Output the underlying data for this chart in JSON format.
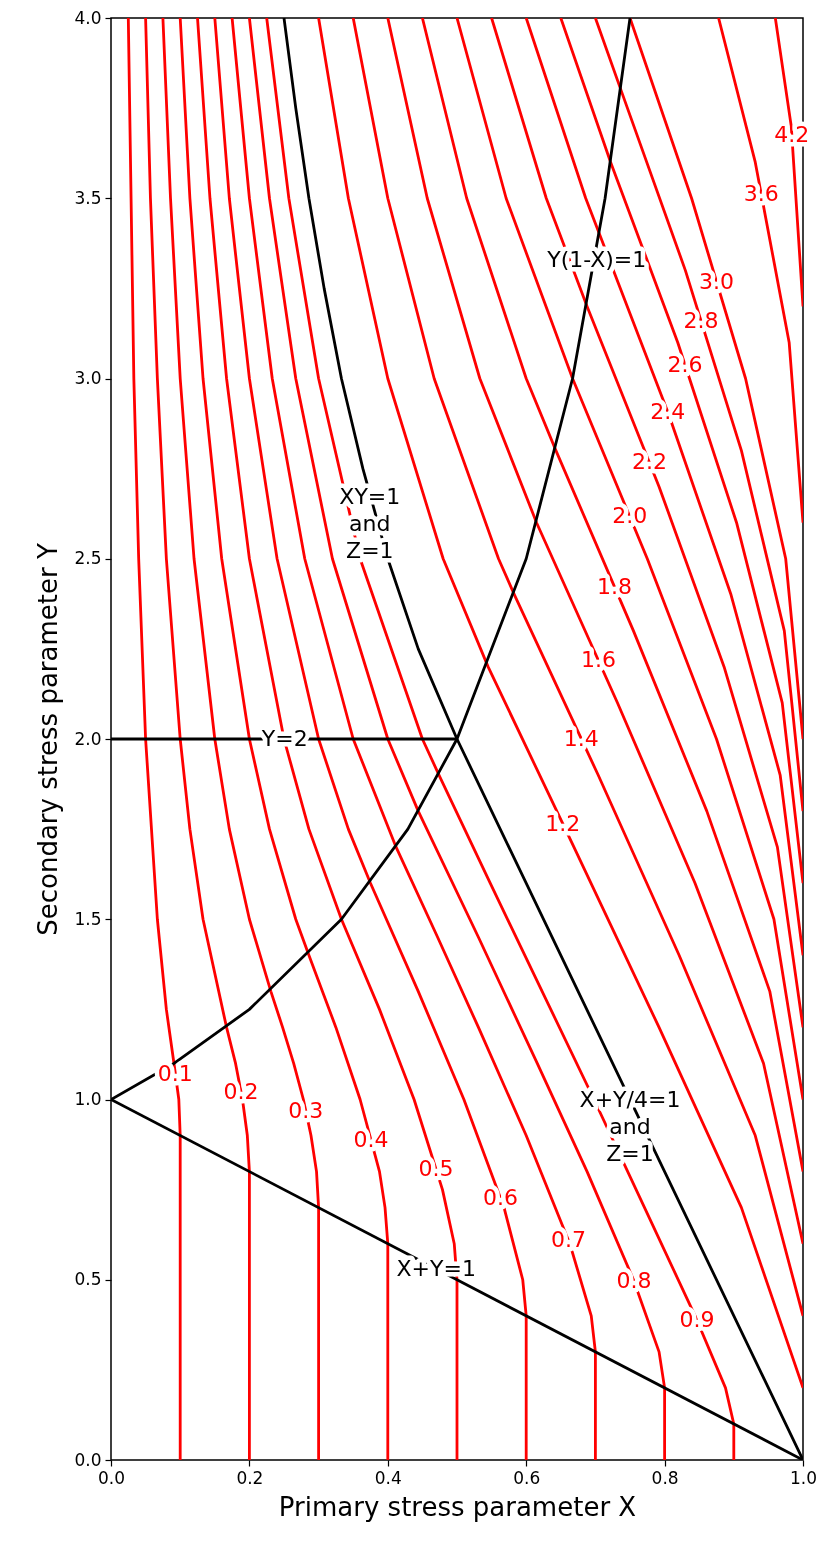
{
  "chart_data": {
    "type": "line",
    "xlabel": "Primary stress parameter X",
    "ylabel": "Secondary stress parameter Y",
    "xlim": [
      0,
      1
    ],
    "ylim": [
      0,
      4
    ],
    "xticks": [
      {
        "value": 0,
        "label": "0.0"
      },
      {
        "value": 0.2,
        "label": "0.2"
      },
      {
        "value": 0.4,
        "label": "0.4"
      },
      {
        "value": 0.6,
        "label": "0.6"
      },
      {
        "value": 0.8,
        "label": "0.8"
      },
      {
        "value": 1,
        "label": "1.0"
      }
    ],
    "yticks": [
      {
        "value": 0,
        "label": "0.0"
      },
      {
        "value": 0.5,
        "label": "0.5"
      },
      {
        "value": 1,
        "label": "1.0"
      },
      {
        "value": 1.5,
        "label": "1.5"
      },
      {
        "value": 2,
        "label": "2.0"
      },
      {
        "value": 2.5,
        "label": "2.5"
      },
      {
        "value": 3,
        "label": "3.0"
      },
      {
        "value": 3.5,
        "label": "3.5"
      },
      {
        "value": 4,
        "label": "4.0"
      }
    ],
    "series": [
      {
        "name": "0.1",
        "color": "#ff0000",
        "x": [
          0.1,
          0.1,
          0.098,
          0.091,
          0.08,
          0.067,
          0.05,
          0.04,
          0.033,
          0.029,
          0.025
        ],
        "values": [
          0,
          0.9,
          1.0,
          1.1,
          1.25,
          1.5,
          2,
          2.5,
          3,
          3.5,
          4
        ]
      },
      {
        "name": "0.2",
        "color": "#ff0000",
        "x": [
          0.2,
          0.2,
          0.197,
          0.19,
          0.18,
          0.167,
          0.133,
          0.114,
          0.1,
          0.08,
          0.067,
          0.057,
          0.05
        ],
        "values": [
          0,
          0.8,
          0.9,
          1.0,
          1.1,
          1.2,
          1.5,
          1.75,
          2,
          2.5,
          3,
          3.5,
          4
        ]
      },
      {
        "name": "0.3",
        "color": "#ff0000",
        "x": [
          0.3,
          0.3,
          0.297,
          0.289,
          0.278,
          0.264,
          0.248,
          0.231,
          0.2,
          0.171,
          0.15,
          0.12,
          0.1,
          0.086,
          0.075
        ],
        "values": [
          0,
          0.7,
          0.8,
          0.9,
          1.0,
          1.1,
          1.2,
          1.3,
          1.5,
          1.75,
          2,
          2.5,
          3,
          3.5,
          4
        ]
      },
      {
        "name": "0.4",
        "color": "#ff0000",
        "x": [
          0.4,
          0.4,
          0.396,
          0.388,
          0.36,
          0.325,
          0.286,
          0.267,
          0.229,
          0.2,
          0.16,
          0.133,
          0.114,
          0.1
        ],
        "values": [
          0,
          0.6,
          0.7,
          0.8,
          1.0,
          1.2,
          1.4,
          1.5,
          1.75,
          2,
          2.5,
          3,
          3.5,
          4
        ]
      },
      {
        "name": "0.5",
        "color": "#ff0000",
        "x": [
          0.5,
          0.5,
          0.496,
          0.479,
          0.438,
          0.388,
          0.333,
          0.286,
          0.25,
          0.2,
          0.167,
          0.143,
          0.125
        ],
        "values": [
          0,
          0.5,
          0.6,
          0.75,
          1.0,
          1.25,
          1.5,
          1.75,
          2,
          2.5,
          3,
          3.5,
          4
        ]
      },
      {
        "name": "0.6",
        "color": "#ff0000",
        "x": [
          0.6,
          0.6,
          0.595,
          0.568,
          0.51,
          0.444,
          0.375,
          0.343,
          0.3,
          0.24,
          0.2,
          0.171,
          0.15
        ],
        "values": [
          0,
          0.4,
          0.5,
          0.7,
          1.0,
          1.3,
          1.6,
          1.75,
          2,
          2.5,
          3,
          3.5,
          4
        ]
      },
      {
        "name": "0.7",
        "color": "#ff0000",
        "x": [
          0.7,
          0.7,
          0.694,
          0.663,
          0.6,
          0.531,
          0.472,
          0.412,
          0.35,
          0.28,
          0.233,
          0.2,
          0.175
        ],
        "values": [
          0,
          0.3,
          0.4,
          0.6,
          0.9,
          1.2,
          1.45,
          1.7,
          2,
          2.5,
          3,
          3.5,
          4
        ]
      },
      {
        "name": "0.8",
        "color": "#ff0000",
        "x": [
          0.8,
          0.8,
          0.792,
          0.755,
          0.688,
          0.616,
          0.531,
          0.444,
          0.4,
          0.32,
          0.267,
          0.229,
          0.2
        ],
        "values": [
          0,
          0.2,
          0.3,
          0.5,
          0.8,
          1.1,
          1.45,
          1.8,
          2,
          2.5,
          3,
          3.5,
          4
        ]
      },
      {
        "name": "0.9",
        "color": "#ff0000",
        "x": [
          0.9,
          0.9,
          0.888,
          0.844,
          0.771,
          0.698,
          0.623,
          0.548,
          0.474,
          0.45,
          0.36,
          0.3,
          0.257,
          0.225
        ],
        "values": [
          0,
          0.1,
          0.2,
          0.4,
          0.7,
          1.0,
          1.3,
          1.6,
          1.9,
          2,
          2.5,
          3,
          3.5,
          4
        ]
      },
      {
        "name": "1.2",
        "color": "#ff0000",
        "x": [
          1,
          0.911,
          0.792,
          0.669,
          0.545,
          0.48,
          0.4,
          0.343,
          0.3
        ],
        "values": [
          0.2,
          0.7,
          1.2,
          1.7,
          2.2,
          2.5,
          3,
          3.5,
          4
        ]
      },
      {
        "name": "1.4",
        "color": "#ff0000",
        "x": [
          1,
          0.931,
          0.821,
          0.704,
          0.583,
          0.56,
          0.467,
          0.4,
          0.35
        ],
        "values": [
          0.4,
          0.9,
          1.4,
          1.9,
          2.4,
          2.5,
          3,
          3.5,
          4
        ]
      },
      {
        "name": "1.6",
        "color": "#ff0000",
        "x": [
          1,
          0.943,
          0.844,
          0.732,
          0.615,
          0.533,
          0.457,
          0.4
        ],
        "values": [
          0.6,
          1.1,
          1.6,
          2.1,
          2.6,
          3,
          3.5,
          4
        ]
      },
      {
        "name": "1.8",
        "color": "#ff0000",
        "x": [
          1,
          0.952,
          0.861,
          0.755,
          0.643,
          0.6,
          0.514,
          0.45
        ],
        "values": [
          0.8,
          1.3,
          1.8,
          2.3,
          2.8,
          3,
          3.5,
          4
        ]
      },
      {
        "name": "2.0",
        "color": "#ff0000",
        "x": [
          1,
          0.958,
          0.875,
          0.775,
          0.667,
          0.571,
          0.5
        ],
        "values": [
          1,
          1.5,
          2,
          2.5,
          3,
          3.5,
          4
        ]
      },
      {
        "name": "2.2",
        "color": "#ff0000",
        "x": [
          1,
          0.963,
          0.886,
          0.792,
          0.688,
          0.629,
          0.55
        ],
        "values": [
          1.2,
          1.7,
          2.2,
          2.7,
          3.2,
          3.5,
          4
        ]
      },
      {
        "name": "2.4",
        "color": "#ff0000",
        "x": [
          1,
          0.967,
          0.896,
          0.806,
          0.706,
          0.686,
          0.6
        ],
        "values": [
          1.4,
          1.9,
          2.4,
          2.9,
          3.4,
          3.5,
          4
        ]
      },
      {
        "name": "2.6",
        "color": "#ff0000",
        "x": [
          1,
          0.97,
          0.904,
          0.819,
          0.722,
          0.65
        ],
        "values": [
          1.6,
          2.1,
          2.6,
          3.1,
          3.6,
          4
        ]
      },
      {
        "name": "2.8",
        "color": "#ff0000",
        "x": [
          1,
          0.973,
          0.911,
          0.83,
          0.737,
          0.7
        ],
        "values": [
          1.8,
          2.3,
          2.8,
          3.3,
          3.8,
          4
        ]
      },
      {
        "name": "3.0",
        "color": "#ff0000",
        "x": [
          1,
          0.975,
          0.917,
          0.839,
          0.75
        ],
        "values": [
          2,
          2.5,
          3,
          3.5,
          4
        ]
      },
      {
        "name": "3.6",
        "color": "#ff0000",
        "x": [
          1,
          0.98,
          0.931,
          0.878
        ],
        "values": [
          2.6,
          3.1,
          3.6,
          4
        ]
      },
      {
        "name": "4.2",
        "color": "#ff0000",
        "x": [
          1,
          0.983,
          0.96
        ],
        "values": [
          3.2,
          3.7,
          4
        ]
      },
      {
        "color": "#000000",
        "x": [
          0,
          0.5
        ],
        "values": [
          2,
          2
        ]
      },
      {
        "color": "#000000",
        "x": [
          0.25,
          0.267,
          0.286,
          0.308,
          0.333,
          0.364,
          0.4,
          0.444,
          0.5,
          1
        ],
        "values": [
          4,
          3.75,
          3.5,
          3.25,
          3,
          2.75,
          2.5,
          2.25,
          2,
          0
        ]
      },
      {
        "color": "#000000",
        "x": [
          0,
          1
        ],
        "values": [
          1,
          0
        ]
      },
      {
        "color": "#000000",
        "x": [
          0,
          0.091,
          0.2,
          0.333,
          0.429,
          0.5,
          0.6,
          0.667,
          0.714,
          0.75
        ],
        "values": [
          1,
          1.1,
          1.25,
          1.5,
          1.75,
          2,
          2.5,
          3,
          3.5,
          4
        ]
      }
    ],
    "annotations": [
      {
        "text": "Y=2",
        "x": 0.251,
        "y": 2.0
      },
      {
        "text": "XY=1\nand\nZ=1",
        "x": 0.374,
        "y": 2.67
      },
      {
        "text": "Y(1-X)=1",
        "x": 0.702,
        "y": 3.33
      },
      {
        "text": "X+Y/4=1\nand\nZ=1",
        "x": 0.75,
        "y": 1.0
      },
      {
        "text": "X+Y=1",
        "x": 0.47,
        "y": 0.53
      }
    ]
  }
}
